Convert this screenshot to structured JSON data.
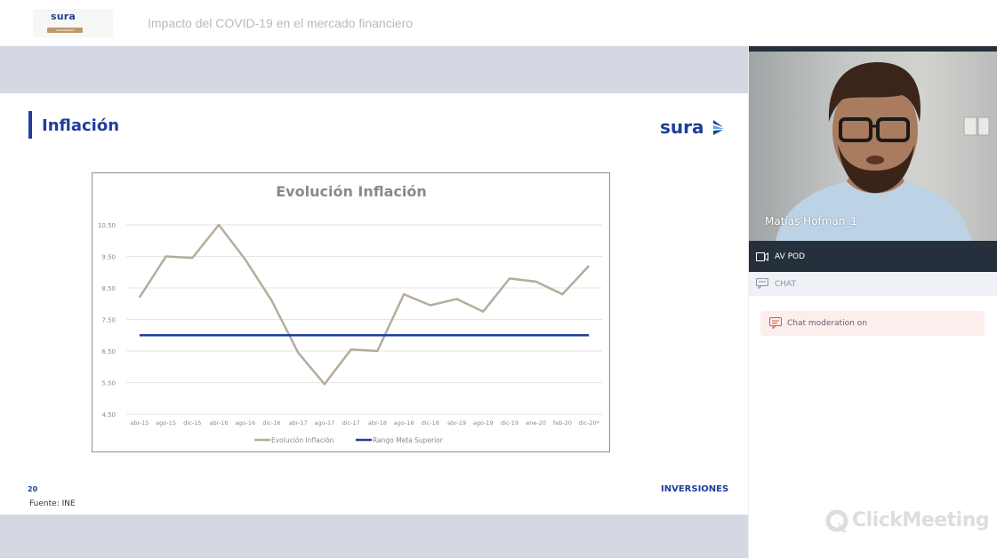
{
  "header": {
    "logo_text": "sura",
    "logo_subtext": "INVERSIONES",
    "webinar_title": "Impacto del COVID-19 en el mercado financiero"
  },
  "slide": {
    "title": "Inflación",
    "logo_text": "sura",
    "page_number": "20",
    "source": "Fuente: INE",
    "footer_label": "INVERSIONES"
  },
  "chart_data": {
    "type": "line",
    "title": "Evolución Inflación",
    "xlabel": "",
    "ylabel": "",
    "categories": [
      "abr-15",
      "ago-15",
      "dic-15",
      "abr-16",
      "ago-16",
      "dic-16",
      "abr-17",
      "ago-17",
      "dic-17",
      "abr-18",
      "ago-18",
      "dic-18",
      "abr-19",
      "ago-19",
      "dic-19",
      "ene-20",
      "feb-20",
      "dic-20*"
    ],
    "y_ticks": [
      "4.50",
      "5.50",
      "6.50",
      "7.50",
      "8.50",
      "9.50",
      "10.50"
    ],
    "ylim": [
      4.5,
      10.5
    ],
    "grid": true,
    "legend_position": "bottom",
    "series": [
      {
        "name": "Evolución Inflación",
        "color": "#b5ac9a",
        "values": [
          8.2,
          9.5,
          9.45,
          10.5,
          9.4,
          8.1,
          6.45,
          5.45,
          6.55,
          6.5,
          8.3,
          7.95,
          8.15,
          7.75,
          8.8,
          8.7,
          8.3,
          9.2
        ]
      },
      {
        "name": "Rango Meta Superior",
        "color": "#1f3e9b",
        "values": [
          7.0,
          7.0,
          7.0,
          7.0,
          7.0,
          7.0,
          7.0,
          7.0,
          7.0,
          7.0,
          7.0,
          7.0,
          7.0,
          7.0,
          7.0,
          7.0,
          7.0,
          7.0
        ]
      }
    ]
  },
  "video": {
    "participant_name": "Matías Hofman_1"
  },
  "sidebar": {
    "av_pod_label": "AV POD",
    "chat_label": "CHAT",
    "moderation_text": "Chat moderation on",
    "brand_text": "ClickMeeting",
    "icons": {
      "av_pod": "camera-icon",
      "chat": "chat-icon",
      "moderation": "moderation-icon",
      "brand": "clickmeeting-logo-icon"
    }
  }
}
